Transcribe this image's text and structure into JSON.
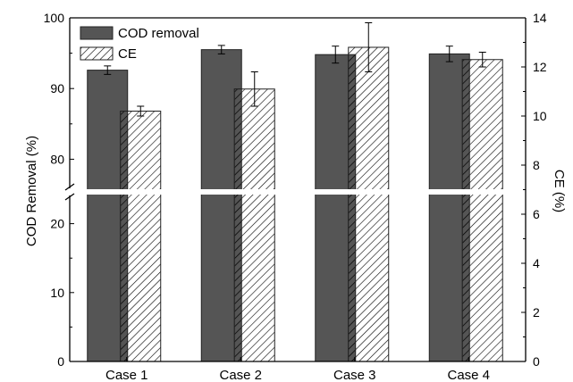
{
  "chart_data": {
    "type": "bar",
    "categories": [
      "Case 1",
      "Case 2",
      "Case 3",
      "Case 4"
    ],
    "series": [
      {
        "name": "COD removal",
        "axis": "left",
        "values": [
          92.6,
          95.5,
          94.8,
          94.9
        ],
        "errors": [
          0.6,
          0.6,
          1.2,
          1.1
        ],
        "style": "solid",
        "color": "#555555"
      },
      {
        "name": "CE",
        "axis": "right",
        "values": [
          10.2,
          11.1,
          12.8,
          12.3
        ],
        "errors": [
          0.2,
          0.7,
          1.0,
          0.3
        ],
        "style": "hatched",
        "color": "#ffffff"
      }
    ],
    "xlabel": "",
    "ylabel": "COD Removal (%)",
    "y2label": "CE (%)",
    "ylim_lower": [
      0,
      25
    ],
    "ylim_upper": [
      75,
      100
    ],
    "y_axis_break": [
      25,
      75
    ],
    "y2lim": [
      0,
      14
    ],
    "yticks_lower": [
      "0",
      "10",
      "20"
    ],
    "yticks_upper": [
      "80",
      "90",
      "100"
    ],
    "y2ticks": [
      "0",
      "2",
      "4",
      "6",
      "8",
      "10",
      "12",
      "14"
    ],
    "legend_position": "top-left",
    "grid": false
  }
}
